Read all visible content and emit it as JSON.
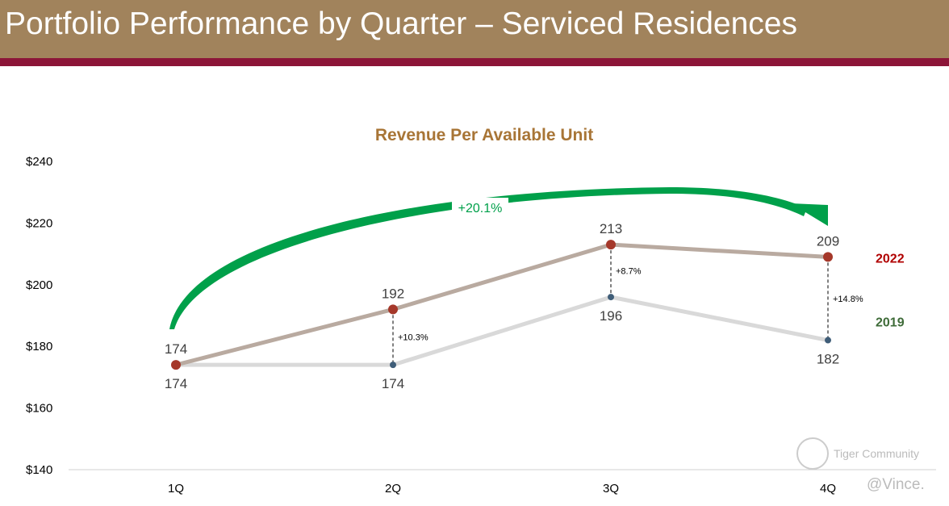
{
  "header": {
    "title": "Portfolio Performance by Quarter – Serviced Residences"
  },
  "chart_data": {
    "type": "line",
    "title": "Revenue Per Available Unit",
    "categories": [
      "1Q",
      "2Q",
      "3Q",
      "4Q"
    ],
    "ylim": [
      140,
      240
    ],
    "y_ticks": [
      140,
      160,
      180,
      200,
      220,
      240
    ],
    "y_tick_labels": [
      "$140",
      "$160",
      "$180",
      "$200",
      "$220",
      "$240"
    ],
    "series": [
      {
        "name": "2022",
        "values": [
          174,
          192,
          213,
          209
        ],
        "color": "#b9aaa0",
        "marker": "#a5382a",
        "label_color": "#b00000"
      },
      {
        "name": "2019",
        "values": [
          174,
          174,
          196,
          182
        ],
        "color": "#d9d9d9",
        "marker": "#3f5d78",
        "label_color": "#3e6b38"
      }
    ],
    "growth_labels": [
      "",
      "+10.3%",
      "+8.7%",
      "+14.8%"
    ],
    "annotation": {
      "text": "+20.1%",
      "color": "#00a04a"
    }
  },
  "watermark": {
    "brand": "Tiger Community",
    "user": "@Vince."
  }
}
